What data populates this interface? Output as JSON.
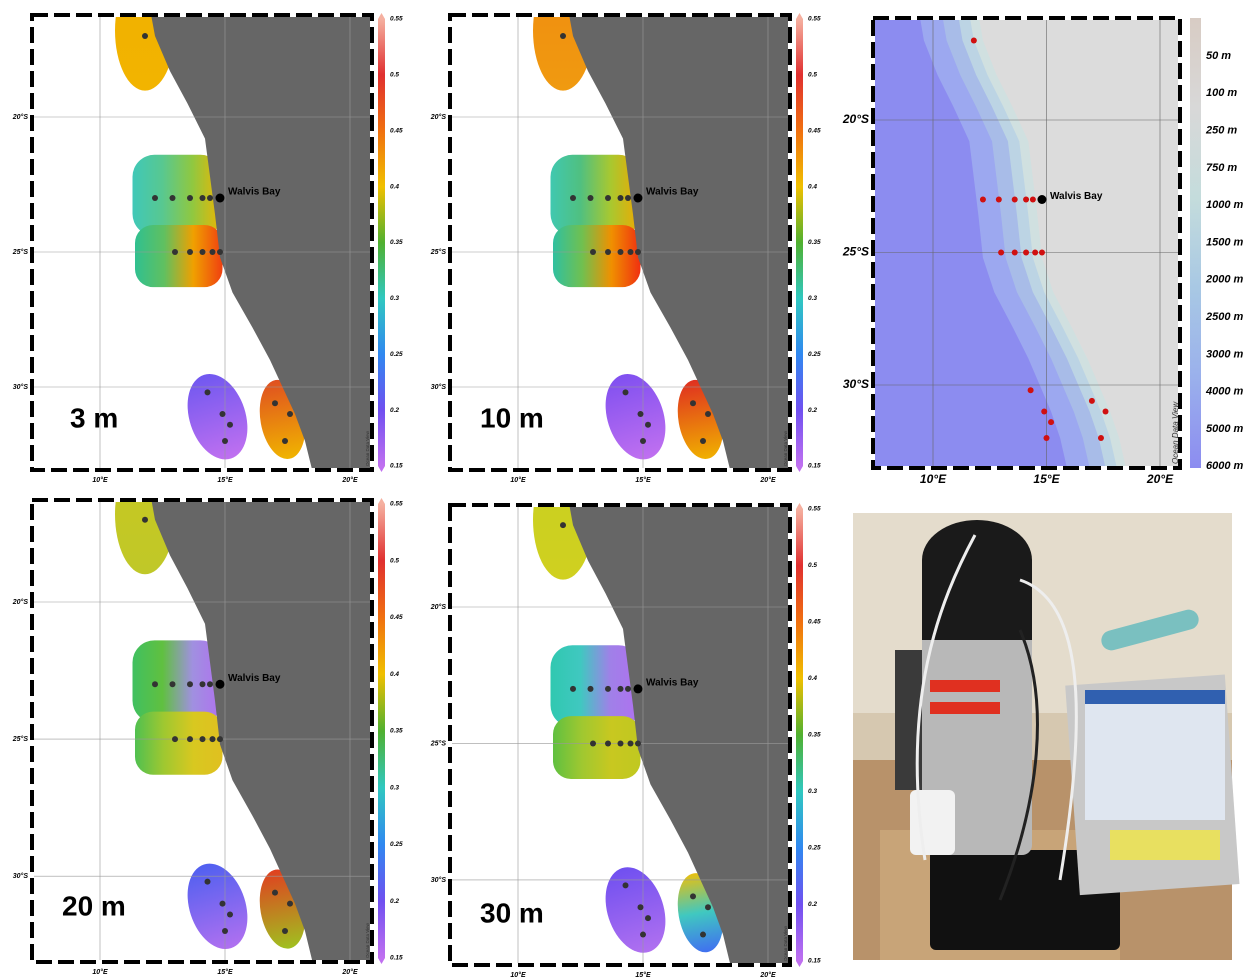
{
  "panels": [
    {
      "depth_label": "3 m"
    },
    {
      "depth_label": "10 m"
    },
    {
      "depth_label": "20 m"
    },
    {
      "depth_label": "30 m"
    }
  ],
  "lat_labels": [
    "20°S",
    "25°S",
    "30°S"
  ],
  "lon_labels": [
    "10°E",
    "15°E",
    "20°E"
  ],
  "colorbar_ticks": [
    "0.15",
    "0.2",
    "0.25",
    "0.3",
    "0.35",
    "0.4",
    "0.45",
    "0.5",
    "0.55"
  ],
  "place": "Walvis Bay",
  "watermark": "Ocean Data View",
  "bathymetry": {
    "legend": [
      "50 m",
      "100 m",
      "250 m",
      "750 m",
      "1000 m",
      "1500 m",
      "2000 m",
      "2500 m",
      "3000 m",
      "4000 m",
      "5000 m",
      "6000 m"
    ]
  }
}
